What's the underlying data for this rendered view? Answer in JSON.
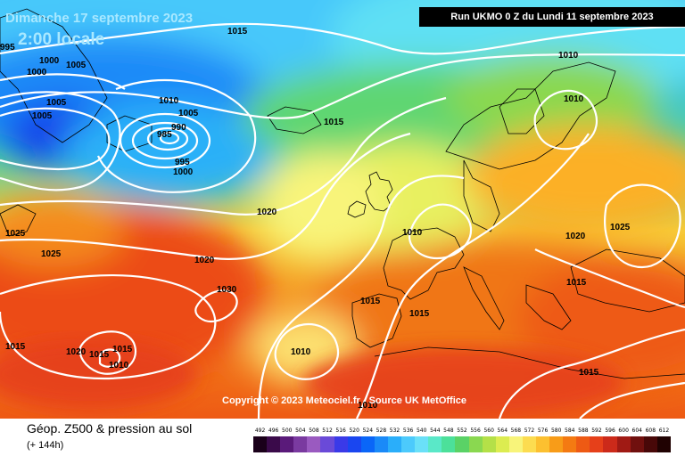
{
  "title": {
    "date": "Dimanche 17 septembre 2023",
    "time": "2:00 locale"
  },
  "run_info": "Run UKMO 0 Z du Lundi 11 septembre 2023",
  "copyright": "Copyright © 2023 Meteociel.fr - Source UK MetOffice",
  "parameter": {
    "title": "Géop. Z500 & pression au sol",
    "subtitle": "(+ 144h)"
  },
  "color_scale": {
    "labels": [
      "492",
      "496",
      "500",
      "504",
      "508",
      "512",
      "516",
      "520",
      "524",
      "528",
      "532",
      "536",
      "540",
      "544",
      "548",
      "552",
      "556",
      "560",
      "564",
      "568",
      "572",
      "576",
      "580",
      "584",
      "588",
      "592",
      "596",
      "600",
      "604",
      "608",
      "612"
    ],
    "colors": [
      "#1a001a",
      "#3a0a4a",
      "#5a1a7a",
      "#7a3aa0",
      "#9a5ac0",
      "#6a4ad8",
      "#3a3ae8",
      "#1a46f0",
      "#0a66f8",
      "#1a8af8",
      "#2aaefa",
      "#4ccafc",
      "#6ae0f8",
      "#5ae8c8",
      "#4ce09a",
      "#5ad266",
      "#8ad850",
      "#b4e048",
      "#dcec50",
      "#f8f47a",
      "#fcdc50",
      "#fcc030",
      "#f89c18",
      "#f47a12",
      "#ee5a14",
      "#e6401a",
      "#cc2a1a",
      "#a01a14",
      "#70100e",
      "#480808",
      "#200202"
    ]
  },
  "isobar_labels": [
    "1015",
    "995",
    "1000",
    "1000",
    "1005",
    "1005",
    "1010",
    "1005",
    "1005",
    "990",
    "985",
    "995",
    "1000",
    "1015",
    "1010",
    "1010",
    "1020",
    "1010",
    "1025",
    "1020",
    "1025",
    "1025",
    "1030",
    "1020",
    "1015",
    "1015",
    "1015",
    "1020",
    "1015",
    "1010",
    "1010",
    "1015",
    "1010",
    "1015",
    "1015"
  ]
}
